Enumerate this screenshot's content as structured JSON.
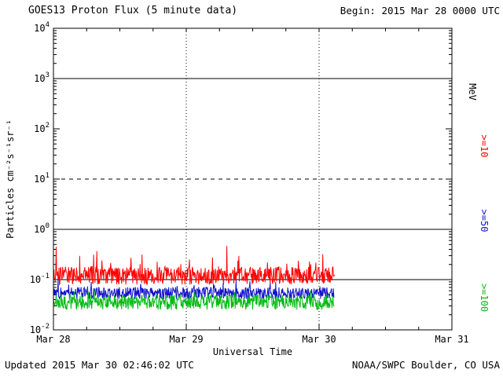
{
  "header": {
    "title": "GOES13 Proton Flux (5 minute data)",
    "begin_label": "Begin: 2015 Mar 28 0000 UTC"
  },
  "footer": {
    "updated": "Updated 2015 Mar 30 02:46:02 UTC",
    "credit": "NOAA/SWPC Boulder, CO USA"
  },
  "chart_data": {
    "type": "line",
    "title": "GOES13 Proton Flux (5 minute data)",
    "xlabel": "Universal Time",
    "ylabel": "Particles cm⁻²s⁻¹sr⁻¹",
    "right_axis_label": "MeV",
    "x_ticks": [
      "Mar 28",
      "Mar 29",
      "Mar 30",
      "Mar 31"
    ],
    "x_tick_hours": [
      0,
      24,
      48,
      72
    ],
    "x_minor_tick_step_hours": 6,
    "x_range_hours": [
      0,
      72
    ],
    "y_scale": "log10",
    "y_log_range": [
      -2,
      4
    ],
    "y_tick_exponents": [
      4,
      3,
      2,
      1,
      0,
      -1,
      -2
    ],
    "hlines_log": [
      {
        "log": 3,
        "style": "solid"
      },
      {
        "log": 1,
        "style": "dashed"
      },
      {
        "log": 0,
        "style": "solid"
      },
      {
        "log": -1,
        "style": "solid"
      }
    ],
    "vlines_hours": [
      24,
      48
    ],
    "grid": "partial",
    "legend_position": "right-rotated",
    "data_end_hour": 50.75,
    "sample_minutes": 5,
    "series": [
      {
        "name": ">=10",
        "color": "#ff0000",
        "log_mean": -0.92,
        "log_noise": 0.18,
        "spike_chance": 0.08,
        "spike_max": 0.45,
        "approx_range_flux": [
          0.07,
          0.4
        ]
      },
      {
        "name": ">=50",
        "color": "#1111cc",
        "log_mean": -1.27,
        "log_noise": 0.12,
        "spike_chance": 0.05,
        "spike_max": 0.2,
        "approx_range_flux": [
          0.04,
          0.1
        ]
      },
      {
        "name": ">=100",
        "color": "#00bb11",
        "log_mean": -1.45,
        "log_noise": 0.15,
        "spike_chance": 0.04,
        "spike_max": 0.15,
        "approx_range_flux": [
          0.02,
          0.07
        ]
      }
    ]
  }
}
